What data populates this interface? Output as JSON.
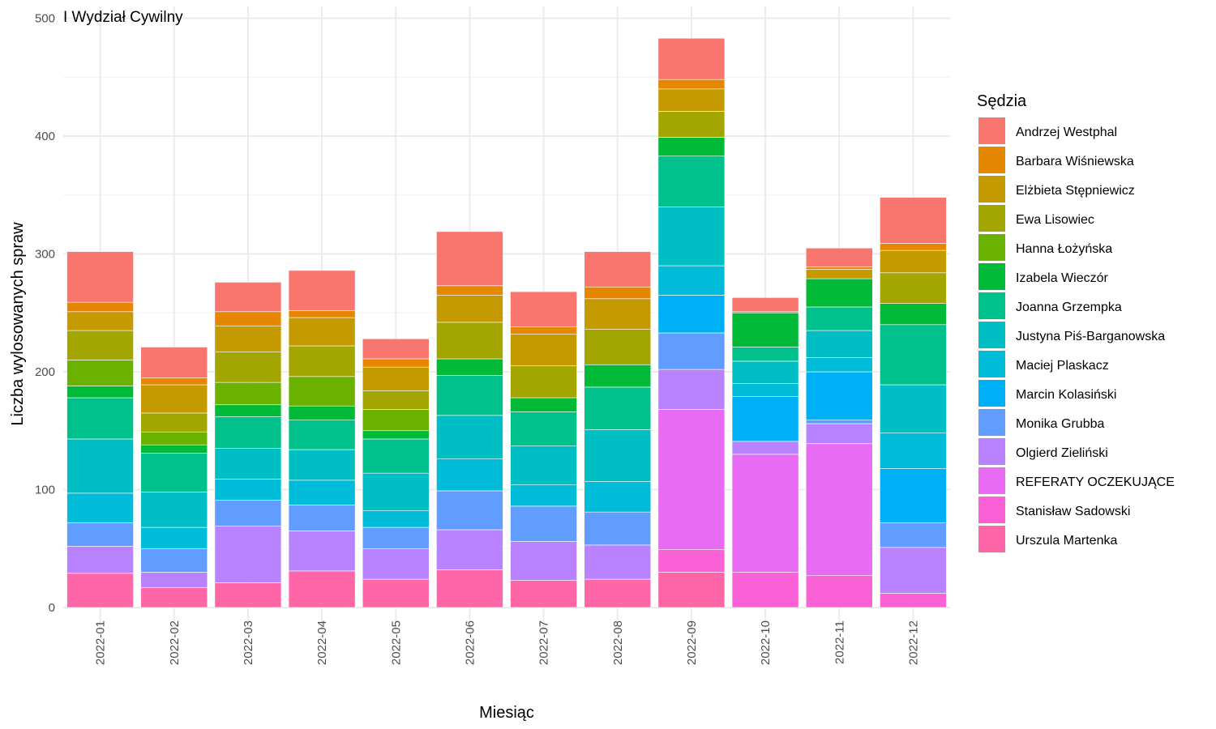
{
  "chart_data": {
    "type": "bar",
    "stacked": true,
    "title": "I Wydział Cywilny",
    "xlabel": "Miesiąc",
    "ylabel": "Liczba wylosowanych spraw",
    "legend_title": "Sędzia",
    "legend_position": "right",
    "grid": true,
    "ylim": [
      0,
      500
    ],
    "yticks": [
      0,
      100,
      200,
      300,
      400,
      500
    ],
    "categories": [
      "2022-01",
      "2022-02",
      "2022-03",
      "2022-04",
      "2022-05",
      "2022-06",
      "2022-07",
      "2022-08",
      "2022-09",
      "2022-10",
      "2022-11",
      "2022-12"
    ],
    "series": [
      {
        "name": "Urszula Martenka",
        "color": "#FF66A8",
        "values": [
          29,
          17,
          21,
          31,
          24,
          32,
          23,
          24,
          30,
          0,
          0,
          0
        ]
      },
      {
        "name": "Stanisław Sadowski",
        "color": "#FB61D7",
        "values": [
          0,
          0,
          0,
          0,
          0,
          0,
          0,
          0,
          19,
          30,
          27,
          12
        ]
      },
      {
        "name": "REFERATY OCZEKUJĄCE",
        "color": "#E76BF3",
        "values": [
          0,
          0,
          0,
          0,
          0,
          0,
          0,
          0,
          119,
          100,
          112,
          0
        ]
      },
      {
        "name": "Olgierd Zieliński",
        "color": "#B983FF",
        "values": [
          23,
          13,
          48,
          34,
          26,
          34,
          33,
          29,
          34,
          11,
          17,
          39
        ]
      },
      {
        "name": "Monika Grubba",
        "color": "#619CFF",
        "values": [
          20,
          20,
          22,
          22,
          18,
          33,
          30,
          28,
          31,
          0,
          3,
          21
        ]
      },
      {
        "name": "Marcin Kolasiński",
        "color": "#00B0F6",
        "values": [
          0,
          0,
          0,
          0,
          0,
          0,
          0,
          0,
          32,
          38,
          41,
          46
        ]
      },
      {
        "name": "Maciej Plaskacz",
        "color": "#00BCD8",
        "values": [
          25,
          18,
          18,
          21,
          14,
          27,
          18,
          26,
          25,
          11,
          12,
          30
        ]
      },
      {
        "name": "Justyna Piś-Barganowska",
        "color": "#00BFC4",
        "values": [
          46,
          30,
          26,
          26,
          32,
          37,
          33,
          44,
          50,
          19,
          23,
          41
        ]
      },
      {
        "name": "Joanna Grzempka",
        "color": "#00C08B",
        "values": [
          35,
          33,
          27,
          25,
          29,
          34,
          29,
          36,
          43,
          12,
          20,
          51
        ]
      },
      {
        "name": "Izabela Wieczór",
        "color": "#00C094",
        "values": [
          0,
          0,
          0,
          0,
          0,
          0,
          0,
          0,
          0,
          0,
          0,
          0
        ]
      },
      {
        "name": "Izabela Wieczór",
        "color": "#00BA38",
        "values": [
          10,
          7,
          10,
          12,
          7,
          14,
          12,
          19,
          16,
          29,
          24,
          18
        ]
      },
      {
        "name": "Hanna Łożyńska",
        "color": "#6BB100",
        "values": [
          22,
          11,
          19,
          25,
          18,
          0,
          0,
          0,
          0,
          0,
          0,
          0
        ]
      },
      {
        "name": "Ewa Lisowiec",
        "color": "#A3A500",
        "values": [
          25,
          16,
          26,
          26,
          16,
          31,
          27,
          30,
          22,
          0,
          0,
          26
        ]
      },
      {
        "name": "Elżbieta Stępniewicz",
        "color": "#C49A00",
        "values": [
          16,
          24,
          22,
          24,
          20,
          23,
          27,
          26,
          19,
          0,
          8,
          19
        ]
      },
      {
        "name": "Barbara Wiśniewska",
        "color": "#E58700",
        "values": [
          8,
          6,
          12,
          6,
          7,
          8,
          6,
          10,
          8,
          1,
          2,
          6
        ]
      },
      {
        "name": "Andrzej Westphal",
        "color": "#F8766D",
        "values": [
          43,
          26,
          25,
          34,
          17,
          46,
          30,
          30,
          35,
          12,
          16,
          39
        ]
      }
    ],
    "legend": [
      {
        "name": "Andrzej Westphal",
        "color": "#F8766D"
      },
      {
        "name": "Barbara Wiśniewska",
        "color": "#E58700"
      },
      {
        "name": "Elżbieta Stępniewicz",
        "color": "#C49A00"
      },
      {
        "name": "Ewa Lisowiec",
        "color": "#A3A500"
      },
      {
        "name": "Hanna Łożyńska",
        "color": "#6BB100"
      },
      {
        "name": "Izabela Wieczór",
        "color": "#00BA38"
      },
      {
        "name": "Joanna Grzempka",
        "color": "#00C08B"
      },
      {
        "name": "Justyna Piś-Barganowska",
        "color": "#00BFC4"
      },
      {
        "name": "Maciej Plaskacz",
        "color": "#00BCD8"
      },
      {
        "name": "Marcin Kolasiński",
        "color": "#00B0F6"
      },
      {
        "name": "Monika Grubba",
        "color": "#619CFF"
      },
      {
        "name": "Olgierd Zieliński",
        "color": "#B983FF"
      },
      {
        "name": "REFERATY OCZEKUJĄCE",
        "color": "#E76BF3"
      },
      {
        "name": "Stanisław Sadowski",
        "color": "#FB61D7"
      },
      {
        "name": "Urszula Martenka",
        "color": "#FF66A8"
      }
    ]
  }
}
